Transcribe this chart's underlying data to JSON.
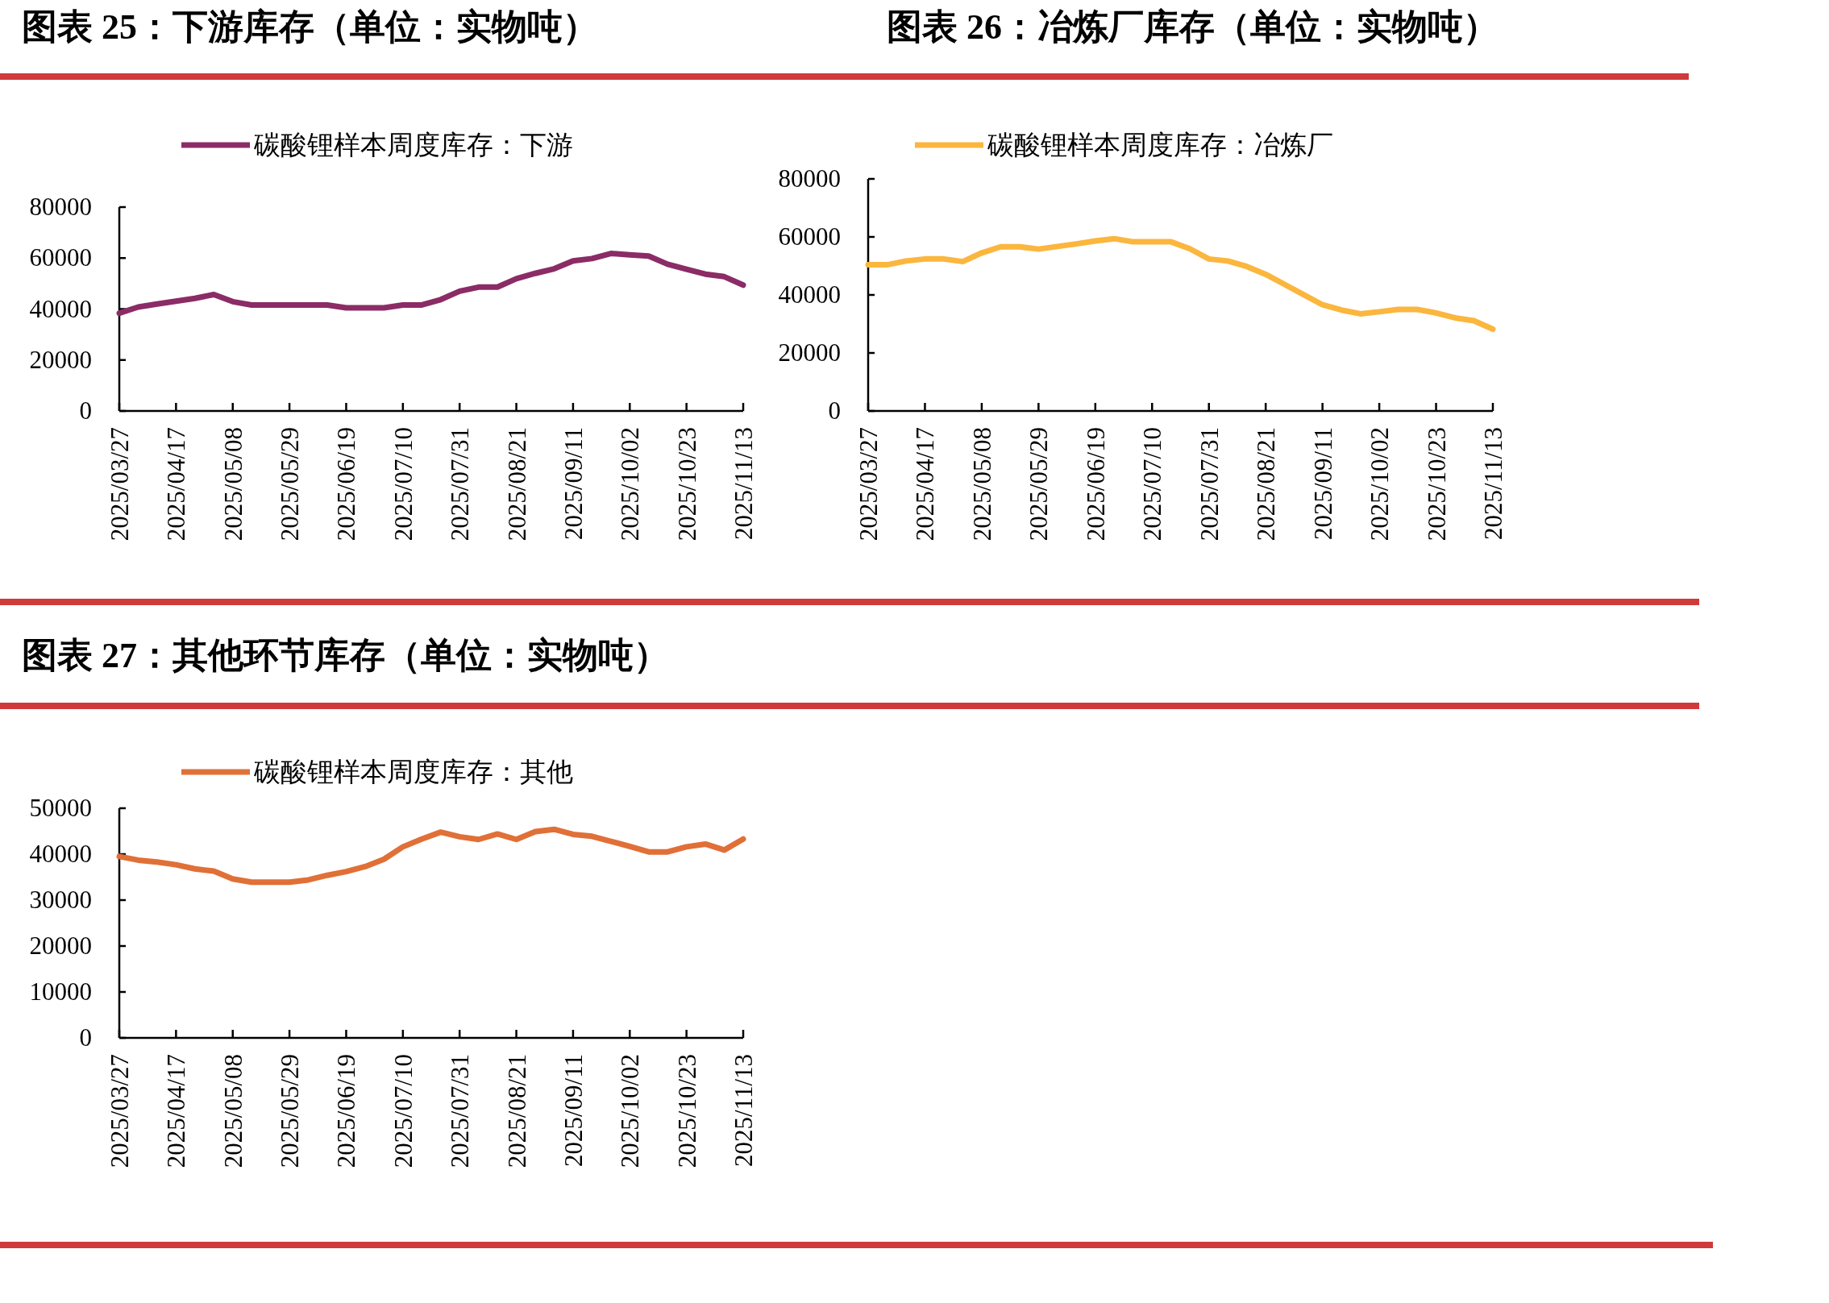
{
  "chart_data": [
    {
      "type": "line",
      "title": "图表 25：下游库存（单位：实物吨）",
      "categories": [
        "2025/03/27",
        null,
        null,
        "2025/04/17",
        null,
        null,
        "2025/05/08",
        null,
        null,
        "2025/05/29",
        null,
        null,
        "2025/06/19",
        null,
        null,
        "2025/07/10",
        null,
        null,
        "2025/07/31",
        null,
        null,
        "2025/08/21",
        null,
        null,
        "2025/09/11",
        null,
        null,
        "2025/10/02",
        null,
        null,
        "2025/10/23",
        null,
        null,
        "2025/11/13"
      ],
      "series": [
        {
          "name": "碳酸锂样本周度库存：下游",
          "color": "#8b2c66",
          "values": [
            38400,
            40800,
            42000,
            43100,
            44200,
            45700,
            42900,
            41600,
            41600,
            41600,
            41600,
            41600,
            40500,
            40500,
            40500,
            41600,
            41600,
            43700,
            47000,
            48600,
            48600,
            51900,
            54000,
            55800,
            58900,
            59800,
            61800,
            61300,
            60800,
            57600,
            55600,
            53700,
            52700,
            49400
          ]
        }
      ],
      "ylim": [
        0,
        80000
      ],
      "yticks": [
        0,
        20000,
        40000,
        60000,
        80000
      ],
      "legend": "top"
    },
    {
      "type": "line",
      "title": "图表 26：冶炼厂库存（单位：实物吨）",
      "categories": [
        "2025/03/27",
        null,
        null,
        "2025/04/17",
        null,
        null,
        "2025/05/08",
        null,
        null,
        "2025/05/29",
        null,
        null,
        "2025/06/19",
        null,
        null,
        "2025/07/10",
        null,
        null,
        "2025/07/31",
        null,
        null,
        "2025/08/21",
        null,
        null,
        "2025/09/11",
        null,
        null,
        "2025/10/02",
        null,
        null,
        "2025/10/23",
        null,
        null,
        "2025/11/13"
      ],
      "series": [
        {
          "name": "碳酸锂样本周度库存：冶炼厂",
          "color": "#fbb63e",
          "values": [
            50400,
            50400,
            51700,
            52400,
            52400,
            51500,
            54500,
            56600,
            56600,
            55800,
            56700,
            57600,
            58600,
            59400,
            58300,
            58300,
            58300,
            55900,
            52400,
            51700,
            49800,
            47100,
            43600,
            40100,
            36600,
            34800,
            33500,
            34200,
            35000,
            35000,
            33800,
            32100,
            31100,
            28200
          ]
        }
      ],
      "ylim": [
        0,
        80000
      ],
      "yticks": [
        0,
        20000,
        40000,
        60000,
        80000
      ],
      "legend": "top"
    },
    {
      "type": "line",
      "title": "图表 27：其他环节库存（单位：实物吨）",
      "categories": [
        "2025/03/27",
        null,
        null,
        "2025/04/17",
        null,
        null,
        "2025/05/08",
        null,
        null,
        "2025/05/29",
        null,
        null,
        "2025/06/19",
        null,
        null,
        "2025/07/10",
        null,
        null,
        "2025/07/31",
        null,
        null,
        "2025/08/21",
        null,
        null,
        "2025/09/11",
        null,
        null,
        "2025/10/02",
        null,
        null,
        "2025/10/23",
        null,
        null,
        "2025/11/13"
      ],
      "series": [
        {
          "name": "碳酸锂样本周度库存：其他",
          "color": "#e07037",
          "values": [
            39500,
            38700,
            38300,
            37700,
            36800,
            36300,
            34600,
            33900,
            33900,
            33900,
            34400,
            35400,
            36200,
            37300,
            38900,
            41600,
            43300,
            44800,
            43800,
            43200,
            44400,
            43200,
            44900,
            45400,
            44300,
            43900,
            42800,
            41700,
            40500,
            40500,
            41600,
            42200,
            40900,
            43300
          ]
        }
      ],
      "ylim": [
        0,
        50000
      ],
      "yticks": [
        0,
        10000,
        20000,
        30000,
        40000,
        50000
      ],
      "legend": "top"
    }
  ]
}
